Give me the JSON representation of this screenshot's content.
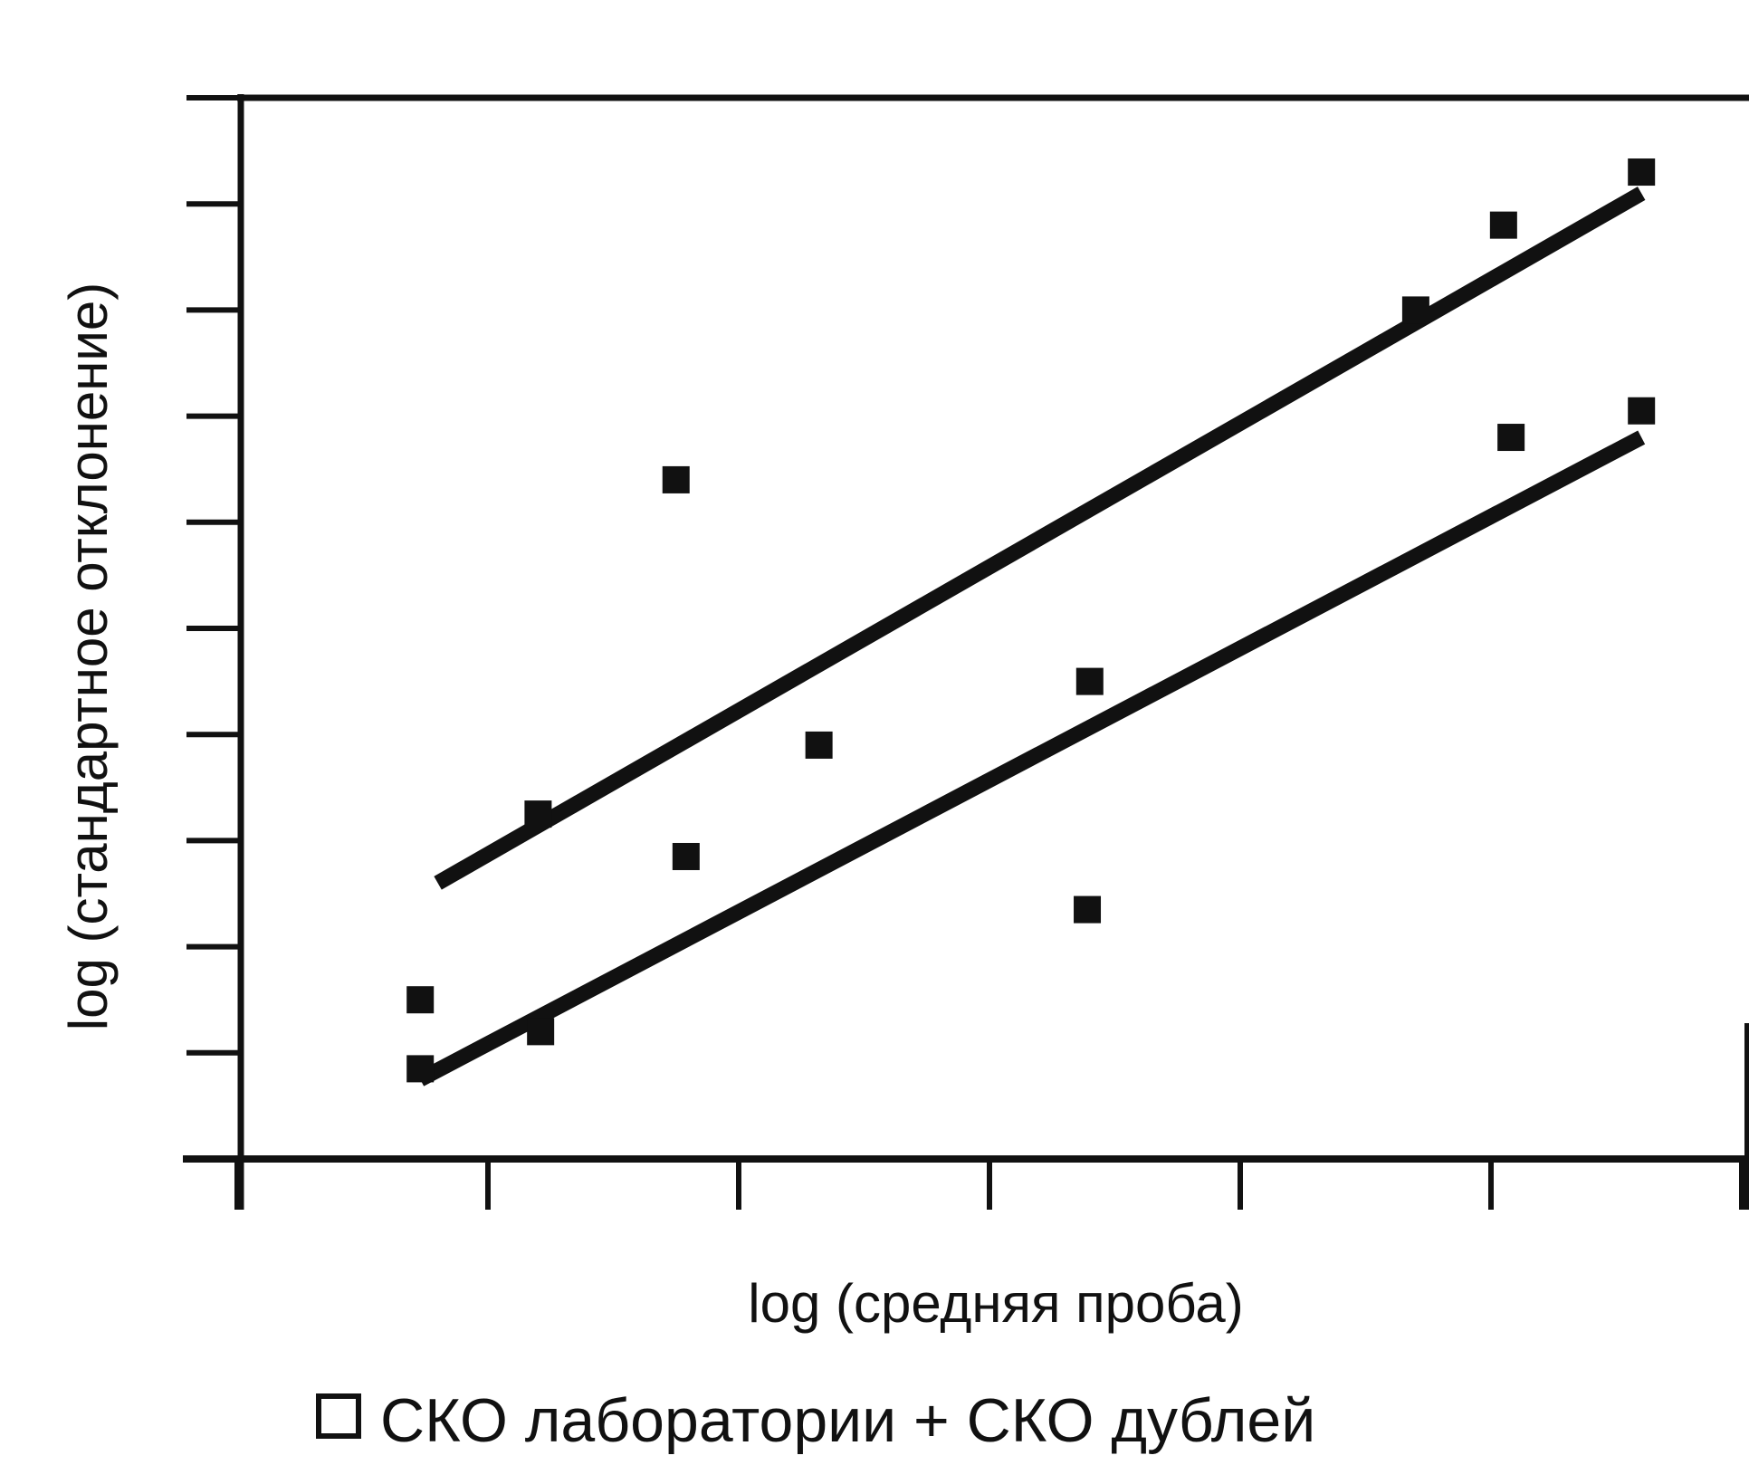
{
  "chart_data": {
    "type": "scatter",
    "xlabel": "log (средняя проба)",
    "ylabel": "log (стандартное отклонение)",
    "xlim": [
      0,
      6
    ],
    "ylim": [
      0,
      10
    ],
    "grid": false,
    "legend": {
      "placement": "bottom",
      "entries": [
        "СКО лаборатории + СКО дублей"
      ]
    },
    "series": [
      {
        "points": [
          {
            "x": 0.73,
            "y": 1.5
          },
          {
            "x": 1.2,
            "y": 3.25
          },
          {
            "x": 1.75,
            "y": 6.4
          },
          {
            "x": 2.32,
            "y": 3.9
          },
          {
            "x": 3.4,
            "y": 4.5
          },
          {
            "x": 4.7,
            "y": 8.0
          },
          {
            "x": 5.05,
            "y": 8.8
          },
          {
            "x": 5.6,
            "y": 9.3
          }
        ],
        "fit": [
          [
            0.8,
            2.6
          ],
          [
            5.6,
            9.1
          ]
        ]
      },
      {
        "points": [
          {
            "x": 0.73,
            "y": 0.85
          },
          {
            "x": 1.21,
            "y": 1.2
          },
          {
            "x": 1.79,
            "y": 2.85
          },
          {
            "x": 3.39,
            "y": 2.35
          },
          {
            "x": 5.08,
            "y": 6.8
          },
          {
            "x": 5.6,
            "y": 7.05
          }
        ],
        "fit": [
          [
            0.73,
            0.75
          ],
          [
            5.6,
            6.8
          ]
        ]
      }
    ]
  },
  "colors": {
    "ink": "#111111",
    "background": "#ffffff"
  }
}
